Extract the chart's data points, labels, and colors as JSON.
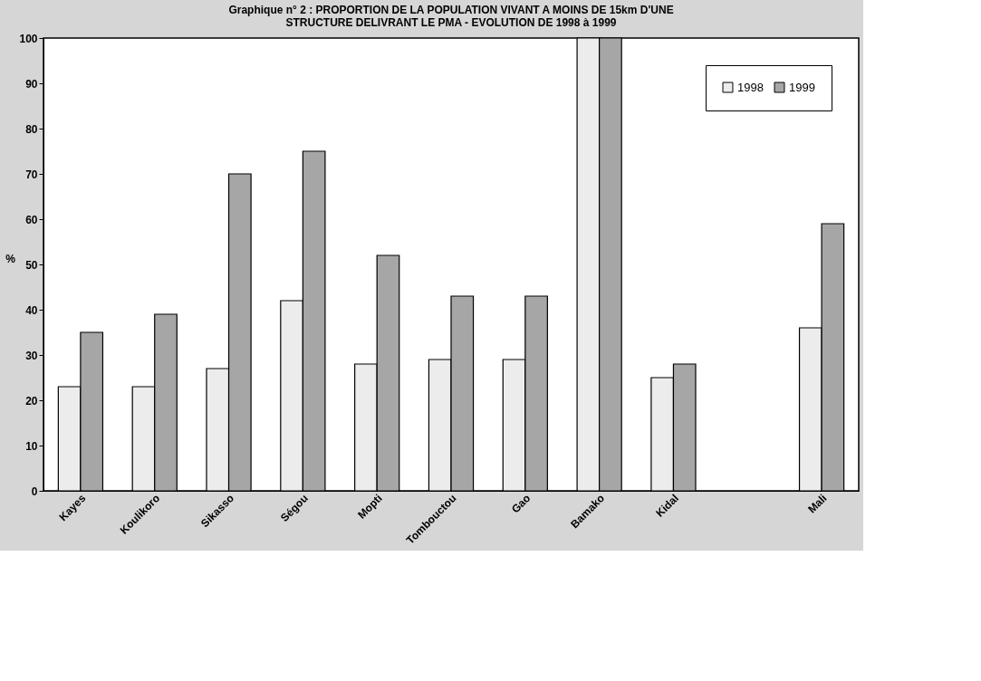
{
  "chart_data": {
    "type": "bar",
    "title": [
      "Graphique n° 2 : PROPORTION DE LA POPULATION VIVANT A MOINS DE 15km D'UNE",
      "STRUCTURE DELIVRANT LE PMA - EVOLUTION DE 1998 à 1999"
    ],
    "ylabel": "%",
    "categories": [
      "Kayes",
      "Koulikoro",
      "Sikasso",
      "Ségou",
      "Mopti",
      "Tombouctou",
      "Gao",
      "Bamako",
      "Kidal",
      null,
      "Mali"
    ],
    "series": [
      {
        "name": "1998",
        "color": "#ececec",
        "values": [
          23,
          23,
          27,
          42,
          28,
          29,
          29,
          100,
          25,
          null,
          36
        ]
      },
      {
        "name": "1999",
        "color": "#a6a6a6",
        "values": [
          35,
          39,
          70,
          75,
          52,
          43,
          43,
          100,
          28,
          null,
          59
        ]
      }
    ],
    "ylim": [
      0,
      100
    ],
    "yticks": [
      0,
      10,
      20,
      30,
      40,
      50,
      60,
      70,
      80,
      90,
      100
    ],
    "grid": false,
    "legend": "top right"
  }
}
